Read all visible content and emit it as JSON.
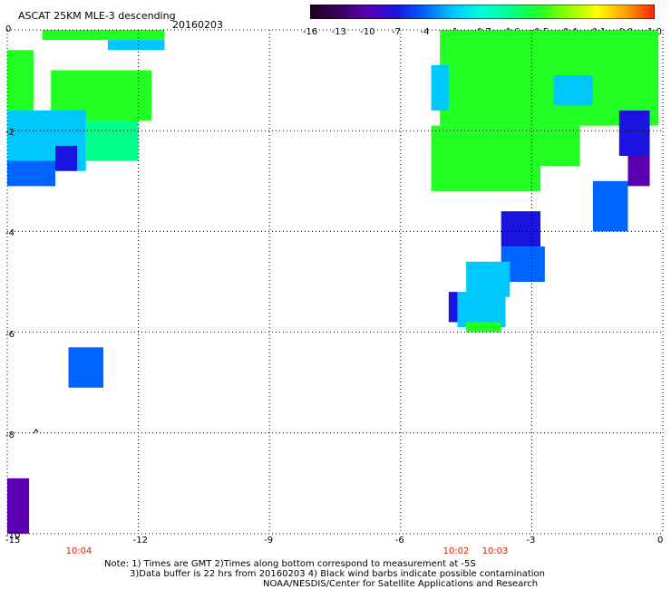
{
  "header": {
    "title": "ASCAT 25KM MLE-3 descending",
    "date": "20160203"
  },
  "colorbar": {
    "labels": [
      "-16",
      "-13",
      "-10",
      "-7",
      "-4",
      "-1",
      "-0.7",
      "-0.6",
      "-0.5",
      "-0.4",
      "-0.1",
      "0.0",
      "1.0"
    ],
    "colors": [
      "#1a001a",
      "#3a005e",
      "#5a00b0",
      "#1a14e0",
      "#0064ff",
      "#00c8ff",
      "#00ffd8",
      "#00ff88",
      "#22ff22",
      "#90ff00",
      "#ffff00",
      "#ffa000",
      "#ff2000"
    ]
  },
  "axes": {
    "x_ticks": [
      "-15",
      "-12",
      "-9",
      "-6",
      "-3",
      "0"
    ],
    "y_ticks": [
      "0",
      "-2",
      "-4",
      "-6",
      "-8",
      "-10"
    ],
    "x_range": [
      -15,
      0
    ],
    "y_range": [
      -10,
      0
    ],
    "grid": "dotted"
  },
  "times": [
    "10:04",
    "10:02",
    "10:03"
  ],
  "notes": [
    "Note: 1) Times are GMT 2)Times along bottom correspond to measurement at -5S",
    "3)Data buffer is 22 hrs from 20160203 4) Black wind barbs indicate possible contamination",
    "NOAA/NESDIS/Center for Satellite Applications and Research"
  ],
  "map_data": {
    "patches": [
      {
        "lon": [
          -14.2,
          -11.4
        ],
        "lat": [
          -0.2,
          0
        ],
        "value": "-0.5"
      },
      {
        "lon": [
          -12.7,
          -11.4
        ],
        "lat": [
          -0.4,
          -0.2
        ],
        "value": "-1"
      },
      {
        "lon": [
          -15,
          -14.4
        ],
        "lat": [
          -1.6,
          -0.4
        ],
        "value": "-0.5"
      },
      {
        "lon": [
          -14.0,
          -11.7
        ],
        "lat": [
          -1.8,
          -0.8
        ],
        "value": "-0.5"
      },
      {
        "lon": [
          -15,
          -13.2
        ],
        "lat": [
          -2.8,
          -1.6
        ],
        "value": "-1"
      },
      {
        "lon": [
          -15,
          -13.9
        ],
        "lat": [
          -3.1,
          -2.6
        ],
        "value": "-4"
      },
      {
        "lon": [
          -13.9,
          -13.4
        ],
        "lat": [
          -2.8,
          -2.3
        ],
        "value": "-7"
      },
      {
        "lon": [
          -13.2,
          -12.0
        ],
        "lat": [
          -2.6,
          -1.8
        ],
        "value": "-0.6"
      },
      {
        "lon": [
          -13.6,
          -12.8
        ],
        "lat": [
          -7.1,
          -6.3
        ],
        "value": "-4"
      },
      {
        "lon": [
          -15,
          -14.5
        ],
        "lat": [
          -10,
          -8.9
        ],
        "value": "-10"
      },
      {
        "lon": [
          -5.1,
          -0.1
        ],
        "lat": [
          -1.9,
          0
        ],
        "value": "-0.5"
      },
      {
        "lon": [
          -5.3,
          -4.9
        ],
        "lat": [
          -1.6,
          -0.7
        ],
        "value": "-1"
      },
      {
        "lon": [
          -5.3,
          -2.8
        ],
        "lat": [
          -3.2,
          -1.9
        ],
        "value": "-0.5"
      },
      {
        "lon": [
          -2.8,
          -1.9
        ],
        "lat": [
          -2.7,
          -1.9
        ],
        "value": "-0.5"
      },
      {
        "lon": [
          -2.5,
          -1.6
        ],
        "lat": [
          -1.5,
          -0.9
        ],
        "value": "-1"
      },
      {
        "lon": [
          -1.0,
          -0.3
        ],
        "lat": [
          -2.5,
          -1.6
        ],
        "value": "-7"
      },
      {
        "lon": [
          -0.8,
          -0.3
        ],
        "lat": [
          -3.1,
          -2.5
        ],
        "value": "-10"
      },
      {
        "lon": [
          -1.6,
          -0.8
        ],
        "lat": [
          -4.0,
          -3.0
        ],
        "value": "-4"
      },
      {
        "lon": [
          -3.7,
          -2.8
        ],
        "lat": [
          -4.3,
          -3.6
        ],
        "value": "-7"
      },
      {
        "lon": [
          -3.7,
          -2.7
        ],
        "lat": [
          -5.0,
          -4.3
        ],
        "value": "-4"
      },
      {
        "lon": [
          -4.5,
          -3.5
        ],
        "lat": [
          -5.3,
          -4.6
        ],
        "value": "-1"
      },
      {
        "lon": [
          -4.7,
          -3.6
        ],
        "lat": [
          -5.9,
          -5.2
        ],
        "value": "-1"
      },
      {
        "lon": [
          -4.5,
          -3.7
        ],
        "lat": [
          -6.0,
          -5.8
        ],
        "value": "-0.5"
      },
      {
        "lon": [
          -4.9,
          -4.7
        ],
        "lat": [
          -5.8,
          -5.2
        ],
        "value": "-7"
      }
    ]
  }
}
